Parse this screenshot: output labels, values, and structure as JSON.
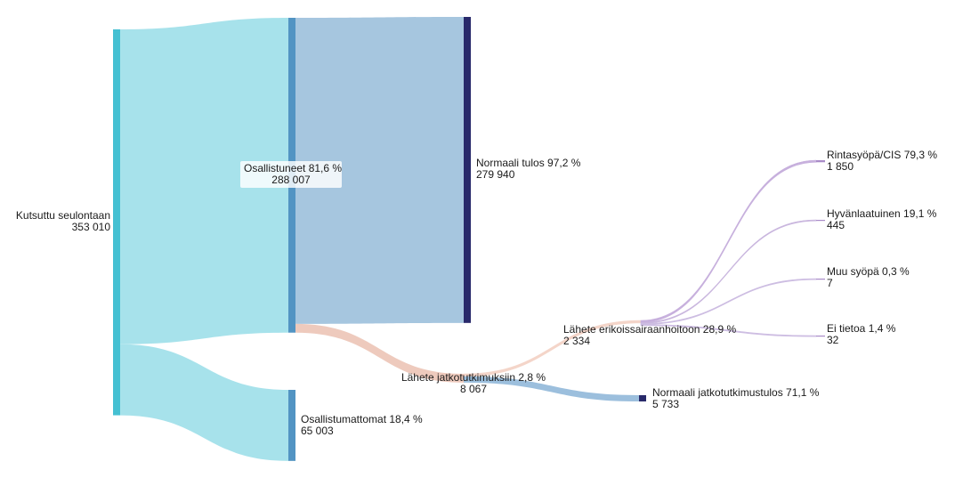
{
  "chart_data": {
    "type": "sankey",
    "nodes": [
      {
        "id": "kutsuttu",
        "name": "Kutsuttu seulontaan",
        "value": "353 010",
        "color": "#45c0d2"
      },
      {
        "id": "osallistuneet",
        "name": "Osallistuneet 81,6 %",
        "value": "288 007",
        "color": "#5294c3"
      },
      {
        "id": "osallistumattomat",
        "name": "Osallistumattomat 18,4 %",
        "value": "65 003",
        "color": "#5294c3"
      },
      {
        "id": "normaali",
        "name": "Normaali tulos 97,2 %",
        "value": "279 940",
        "color": "#28296a"
      },
      {
        "id": "lahete_jatko",
        "name": "Lähete jatkotutkimuksiin 2,8 %",
        "value": "8 067",
        "color": "#f0c9bd"
      },
      {
        "id": "lahete_erik",
        "name": "Lähete erikoissairaanhoitoon 28,9 %",
        "value": "2 334",
        "color": "#f4dbd2"
      },
      {
        "id": "normaali_jatko",
        "name": "Normaali jatkotutkimustulos 71,1 %",
        "value": "5 733",
        "color": "#28296a"
      },
      {
        "id": "rintasyopa",
        "name": "Rintasyöpä/CIS 79,3 %",
        "value": "1 850",
        "color": "#a98bc8"
      },
      {
        "id": "hyvanlaatuinen",
        "name": "Hyvänlaatuinen 19,1 %",
        "value": "445",
        "color": "#a98bc8"
      },
      {
        "id": "muu_syopa",
        "name": "Muu syöpä 0,3 %",
        "value": "7",
        "color": "#a98bc8"
      },
      {
        "id": "ei_tietoa",
        "name": "Ei tietoa 1,4 %",
        "value": "32",
        "color": "#a98bc8"
      }
    ],
    "links": [
      {
        "source": "kutsuttu",
        "target": "osallistuneet",
        "value": 288007,
        "color": "#a2e0ea"
      },
      {
        "source": "kutsuttu",
        "target": "osallistumattomat",
        "value": 65003,
        "color": "#a2e0ea"
      },
      {
        "source": "osallistuneet",
        "target": "normaali",
        "value": 279940,
        "color": "#a1c3dd"
      },
      {
        "source": "osallistuneet",
        "target": "lahete_jatko",
        "value": 8067,
        "color": "#edc7b9"
      },
      {
        "source": "lahete_jatko",
        "target": "lahete_erik",
        "value": 2334,
        "color": "#f4d5c9"
      },
      {
        "source": "lahete_jatko",
        "target": "normaali_jatko",
        "value": 5733,
        "color": "#97bcdb"
      },
      {
        "source": "lahete_erik",
        "target": "rintasyopa",
        "value": 1850,
        "color": "#c7b0dd"
      },
      {
        "source": "lahete_erik",
        "target": "hyvanlaatuinen",
        "value": 445,
        "color": "#c9b6de"
      },
      {
        "source": "lahete_erik",
        "target": "muu_syopa",
        "value": 7,
        "color": "#cdbde2"
      },
      {
        "source": "lahete_erik",
        "target": "ei_tietoa",
        "value": 32,
        "color": "#cdbde2"
      }
    ]
  }
}
